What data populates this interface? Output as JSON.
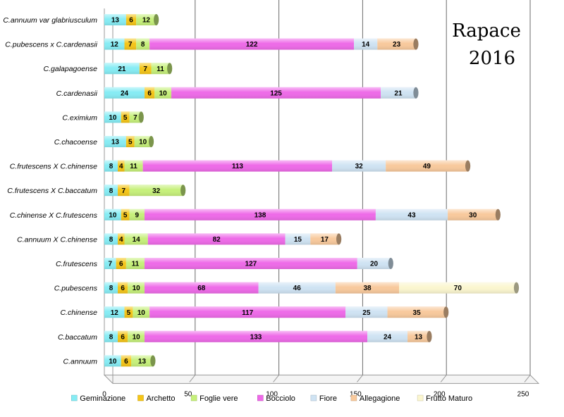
{
  "chart_data": {
    "type": "bar",
    "orientation": "horizontal",
    "stacked": true,
    "annotation": [
      "Rapace",
      "2016"
    ],
    "xlim": [
      0,
      250
    ],
    "xticks": [
      0,
      50,
      100,
      150,
      200,
      250
    ],
    "grid": true,
    "legend_position": "bottom",
    "categories": [
      "C.annuum var glabriusculum",
      "C.pubescens x C.cardenasii",
      "C.galapagoense",
      "C.cardenasii",
      "C.eximium",
      "C.chacoense",
      "C.frutescens X C.chinense",
      "C.frutescens X C.baccatum",
      "C.chinense X C.frutescens",
      "C.annuum X C.chinense",
      "C.frutescens",
      "C.pubescens",
      "C.chinense",
      "C.baccatum",
      "C.annuum"
    ],
    "series": [
      {
        "name": "Geminazione",
        "color": "#86ecf4",
        "values": [
          13,
          12,
          21,
          24,
          10,
          13,
          8,
          8,
          10,
          8,
          7,
          8,
          12,
          8,
          10
        ]
      },
      {
        "name": "Archetto",
        "color": "#f5c518",
        "values": [
          6,
          7,
          7,
          6,
          5,
          5,
          4,
          7,
          5,
          4,
          6,
          6,
          5,
          6,
          6
        ]
      },
      {
        "name": "Foglie vere",
        "color": "#c6f07a",
        "values": [
          12,
          8,
          11,
          10,
          7,
          10,
          11,
          32,
          9,
          14,
          11,
          10,
          10,
          10,
          13
        ]
      },
      {
        "name": "Bocciolo",
        "color": "#ee6ae8",
        "values": [
          0,
          122,
          0,
          125,
          0,
          0,
          113,
          0,
          138,
          82,
          127,
          68,
          117,
          133,
          0
        ]
      },
      {
        "name": "Fiore",
        "color": "#cfe3f3",
        "values": [
          0,
          14,
          0,
          21,
          0,
          0,
          32,
          0,
          43,
          15,
          20,
          46,
          25,
          24,
          0
        ]
      },
      {
        "name": "Allegagione",
        "color": "#f8c99c",
        "values": [
          0,
          23,
          0,
          0,
          0,
          0,
          49,
          0,
          30,
          17,
          0,
          38,
          35,
          13,
          0
        ]
      },
      {
        "name": "Frutto Maturo",
        "color": "#fbf6cf",
        "values": [
          0,
          0,
          0,
          0,
          0,
          0,
          0,
          0,
          0,
          0,
          0,
          70,
          0,
          0,
          0
        ]
      }
    ]
  }
}
